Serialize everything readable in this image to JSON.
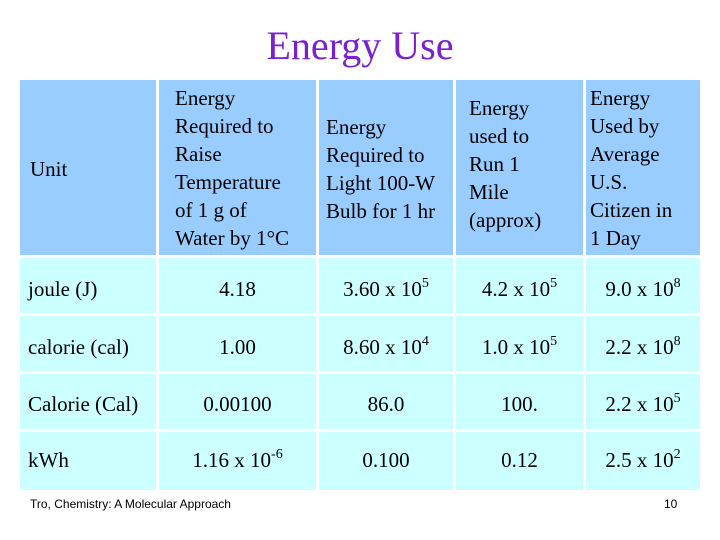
{
  "title": "Energy Use",
  "table": {
    "headers": {
      "unit": "Unit",
      "col1": [
        "Energy",
        "Required to",
        "Raise",
        "Temperature",
        "of 1 g of",
        "Water by 1°C"
      ],
      "col2": [
        "Energy",
        "Required to",
        "Light 100-W",
        "Bulb for 1 hr"
      ],
      "col3": [
        "Energy",
        "used to",
        "Run 1",
        "Mile",
        "(approx)"
      ],
      "col4": [
        "Energy",
        "Used by",
        "Average",
        "U.S.",
        "Citizen in",
        "1 Day"
      ]
    },
    "rows": [
      {
        "unit": "joule (J)",
        "c1": {
          "base": "4.18",
          "exp": ""
        },
        "c2": {
          "base": "3.60 x 10",
          "exp": "5"
        },
        "c3": {
          "base": "4.2 x 10",
          "exp": "5"
        },
        "c4": {
          "base": "9.0 x 10",
          "exp": "8"
        }
      },
      {
        "unit": "calorie (cal)",
        "c1": {
          "base": "1.00",
          "exp": ""
        },
        "c2": {
          "base": "8.60 x 10",
          "exp": "4"
        },
        "c3": {
          "base": "1.0 x 10",
          "exp": "5"
        },
        "c4": {
          "base": "2.2 x 10",
          "exp": "8"
        }
      },
      {
        "unit": "Calorie (Cal)",
        "c1": {
          "base": "0.00100",
          "exp": ""
        },
        "c2": {
          "base": "86.0",
          "exp": ""
        },
        "c3": {
          "base": "100.",
          "exp": ""
        },
        "c4": {
          "base": "2.2 x 10",
          "exp": "5"
        }
      },
      {
        "unit": "kWh",
        "c1": {
          "base": "1.16 x 10",
          "exp": "-6"
        },
        "c2": {
          "base": "0.100",
          "exp": ""
        },
        "c3": {
          "base": "0.12",
          "exp": ""
        },
        "c4": {
          "base": "2.5 x 10",
          "exp": "2"
        }
      }
    ]
  },
  "footer": {
    "citation": "Tro, Chemistry: A Molecular Approach",
    "page_number": "10"
  },
  "colors": {
    "title": "#7a1fd1",
    "header_fill": "#99ccff",
    "row_fill": "#ccffff"
  }
}
